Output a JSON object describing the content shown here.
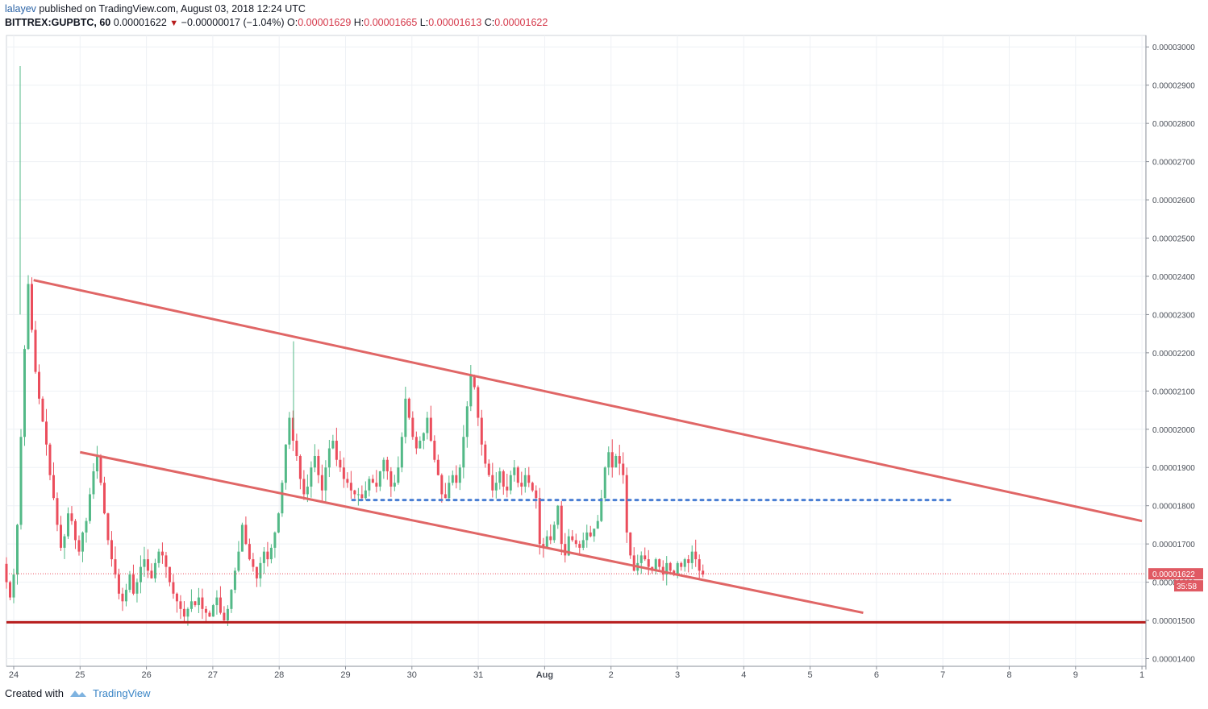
{
  "header": {
    "author": "lalayev",
    "published_text": "published on TradingView.com, August 03, 2018 12:24 UTC",
    "symbol": "BITTREX:GUPBTC, 60",
    "last_price": "0.00001622",
    "change_symbol": "▼",
    "change": "−0.00000017 (−1.04%)",
    "o_label": "O:",
    "o_value": "0.00001629",
    "h_label": "H:",
    "h_value": "0.00001665",
    "l_label": "L:",
    "l_value": "0.00001613",
    "c_label": "C:",
    "c_value": "0.00001622"
  },
  "footer": {
    "created_with": "Created with",
    "brand": "TradingView"
  },
  "colors": {
    "up": "#53b987",
    "down": "#eb4d5c",
    "trendline": "#e06666",
    "support": "#b71c1c",
    "dotted": "#4a7fd4",
    "grid": "#eef1f5"
  },
  "chart_data": {
    "type": "candlestick",
    "symbol": "BITTREX:GUPBTC",
    "interval": "60",
    "ylim": [
      1.38e-05,
      3.03e-05
    ],
    "y_ticks": [
      "0.00001400",
      "0.00001500",
      "0.00001600",
      "0.00001700",
      "0.00001800",
      "0.00001900",
      "0.00002000",
      "0.00002100",
      "0.00002200",
      "0.00002300",
      "0.00002400",
      "0.00002500",
      "0.00002600",
      "0.00002700",
      "0.00002800",
      "0.00002900",
      "0.00003000"
    ],
    "x_ticks": [
      "24",
      "25",
      "26",
      "27",
      "28",
      "29",
      "30",
      "31",
      "Aug",
      "2",
      "3",
      "4",
      "5",
      "6",
      "7",
      "8",
      "9",
      "1"
    ],
    "current_price_label": "0.00001622",
    "countdown_label": "35:58",
    "current_price": 1.622e-05,
    "support_level": 1.495e-05,
    "resistance_dotted": 1.815e-05,
    "candles_close": [
      1.6e-05,
      1.56e-05,
      1.62e-05,
      1.75e-05,
      1.98e-05,
      2.21e-05,
      2.38e-05,
      2.26e-05,
      2.15e-05,
      2.08e-05,
      2.02e-05,
      1.96e-05,
      1.88e-05,
      1.82e-05,
      1.75e-05,
      1.69e-05,
      1.72e-05,
      1.78e-05,
      1.76e-05,
      1.71e-05,
      1.68e-05,
      1.73e-05,
      1.76e-05,
      1.83e-05,
      1.89e-05,
      1.93e-05,
      1.86e-05,
      1.78e-05,
      1.71e-05,
      1.66e-05,
      1.62e-05,
      1.57e-05,
      1.55e-05,
      1.58e-05,
      1.62e-05,
      1.57e-05,
      1.6e-05,
      1.64e-05,
      1.66e-05,
      1.63e-05,
      1.61e-05,
      1.65e-05,
      1.68e-05,
      1.67e-05,
      1.64e-05,
      1.6e-05,
      1.57e-05,
      1.55e-05,
      1.53e-05,
      1.51e-05,
      1.53e-05,
      1.55e-05,
      1.54e-05,
      1.56e-05,
      1.53e-05,
      1.52e-05,
      1.51e-05,
      1.54e-05,
      1.56e-05,
      1.52e-05,
      1.5e-05,
      1.53e-05,
      1.58e-05,
      1.63e-05,
      1.68e-05,
      1.75e-05,
      1.7e-05,
      1.66e-05,
      1.64e-05,
      1.61e-05,
      1.65e-05,
      1.68e-05,
      1.66e-05,
      1.69e-05,
      1.73e-05,
      1.78e-05,
      1.86e-05,
      1.96e-05,
      2.03e-05,
      1.97e-05,
      1.93e-05,
      1.87e-05,
      1.83e-05,
      1.85e-05,
      1.9e-05,
      1.93e-05,
      1.88e-05,
      1.84e-05,
      1.9e-05,
      1.95e-05,
      1.97e-05,
      1.92e-05,
      1.9e-05,
      1.87e-05,
      1.86e-05,
      1.84e-05,
      1.83e-05,
      1.83e-05,
      1.82e-05,
      1.84e-05,
      1.87e-05,
      1.86e-05,
      1.85e-05,
      1.89e-05,
      1.92e-05,
      1.89e-05,
      1.85e-05,
      1.86e-05,
      1.9e-05,
      1.98e-05,
      2.08e-05,
      2.03e-05,
      1.98e-05,
      1.95e-05,
      1.97e-05,
      1.99e-05,
      2.03e-05,
      1.97e-05,
      1.92e-05,
      1.88e-05,
      1.83e-05,
      1.82e-05,
      1.86e-05,
      1.88e-05,
      1.86e-05,
      1.9e-05,
      1.98e-05,
      2.06e-05,
      2.14e-05,
      2.11e-05,
      2.03e-05,
      1.96e-05,
      1.91e-05,
      1.88e-05,
      1.84e-05,
      1.86e-05,
      1.89e-05,
      1.85e-05,
      1.84e-05,
      1.88e-05,
      1.9e-05,
      1.86e-05,
      1.85e-05,
      1.88e-05,
      1.86e-05,
      1.84e-05,
      1.82e-05,
      1.7e-05,
      1.69e-05,
      1.72e-05,
      1.71e-05,
      1.75e-05,
      1.8e-05,
      1.7e-05,
      1.67e-05,
      1.72e-05,
      1.71e-05,
      1.7e-05,
      1.69e-05,
      1.71e-05,
      1.73e-05,
      1.72e-05,
      1.74e-05,
      1.76e-05,
      1.82e-05,
      1.9e-05,
      1.94e-05,
      1.9e-05,
      1.93e-05,
      1.91e-05,
      1.88e-05,
      1.73e-05,
      1.67e-05,
      1.63e-05,
      1.65e-05,
      1.67e-05,
      1.66e-05,
      1.64e-05,
      1.63e-05,
      1.66e-05,
      1.64e-05,
      1.62e-05,
      1.65e-05,
      1.63e-05,
      1.62e-05,
      1.65e-05,
      1.64e-05,
      1.66e-05,
      1.65e-05,
      1.68e-05,
      1.66e-05,
      1.63e-05,
      1.62e-05
    ],
    "trendlines": [
      {
        "name": "upper",
        "from": [
          0.3,
          2.39e-05
        ],
        "to": [
          17.0,
          1.76e-05
        ]
      },
      {
        "name": "lower",
        "from": [
          1.0,
          1.94e-05
        ],
        "to": [
          12.8,
          1.52e-05
        ]
      }
    ]
  }
}
